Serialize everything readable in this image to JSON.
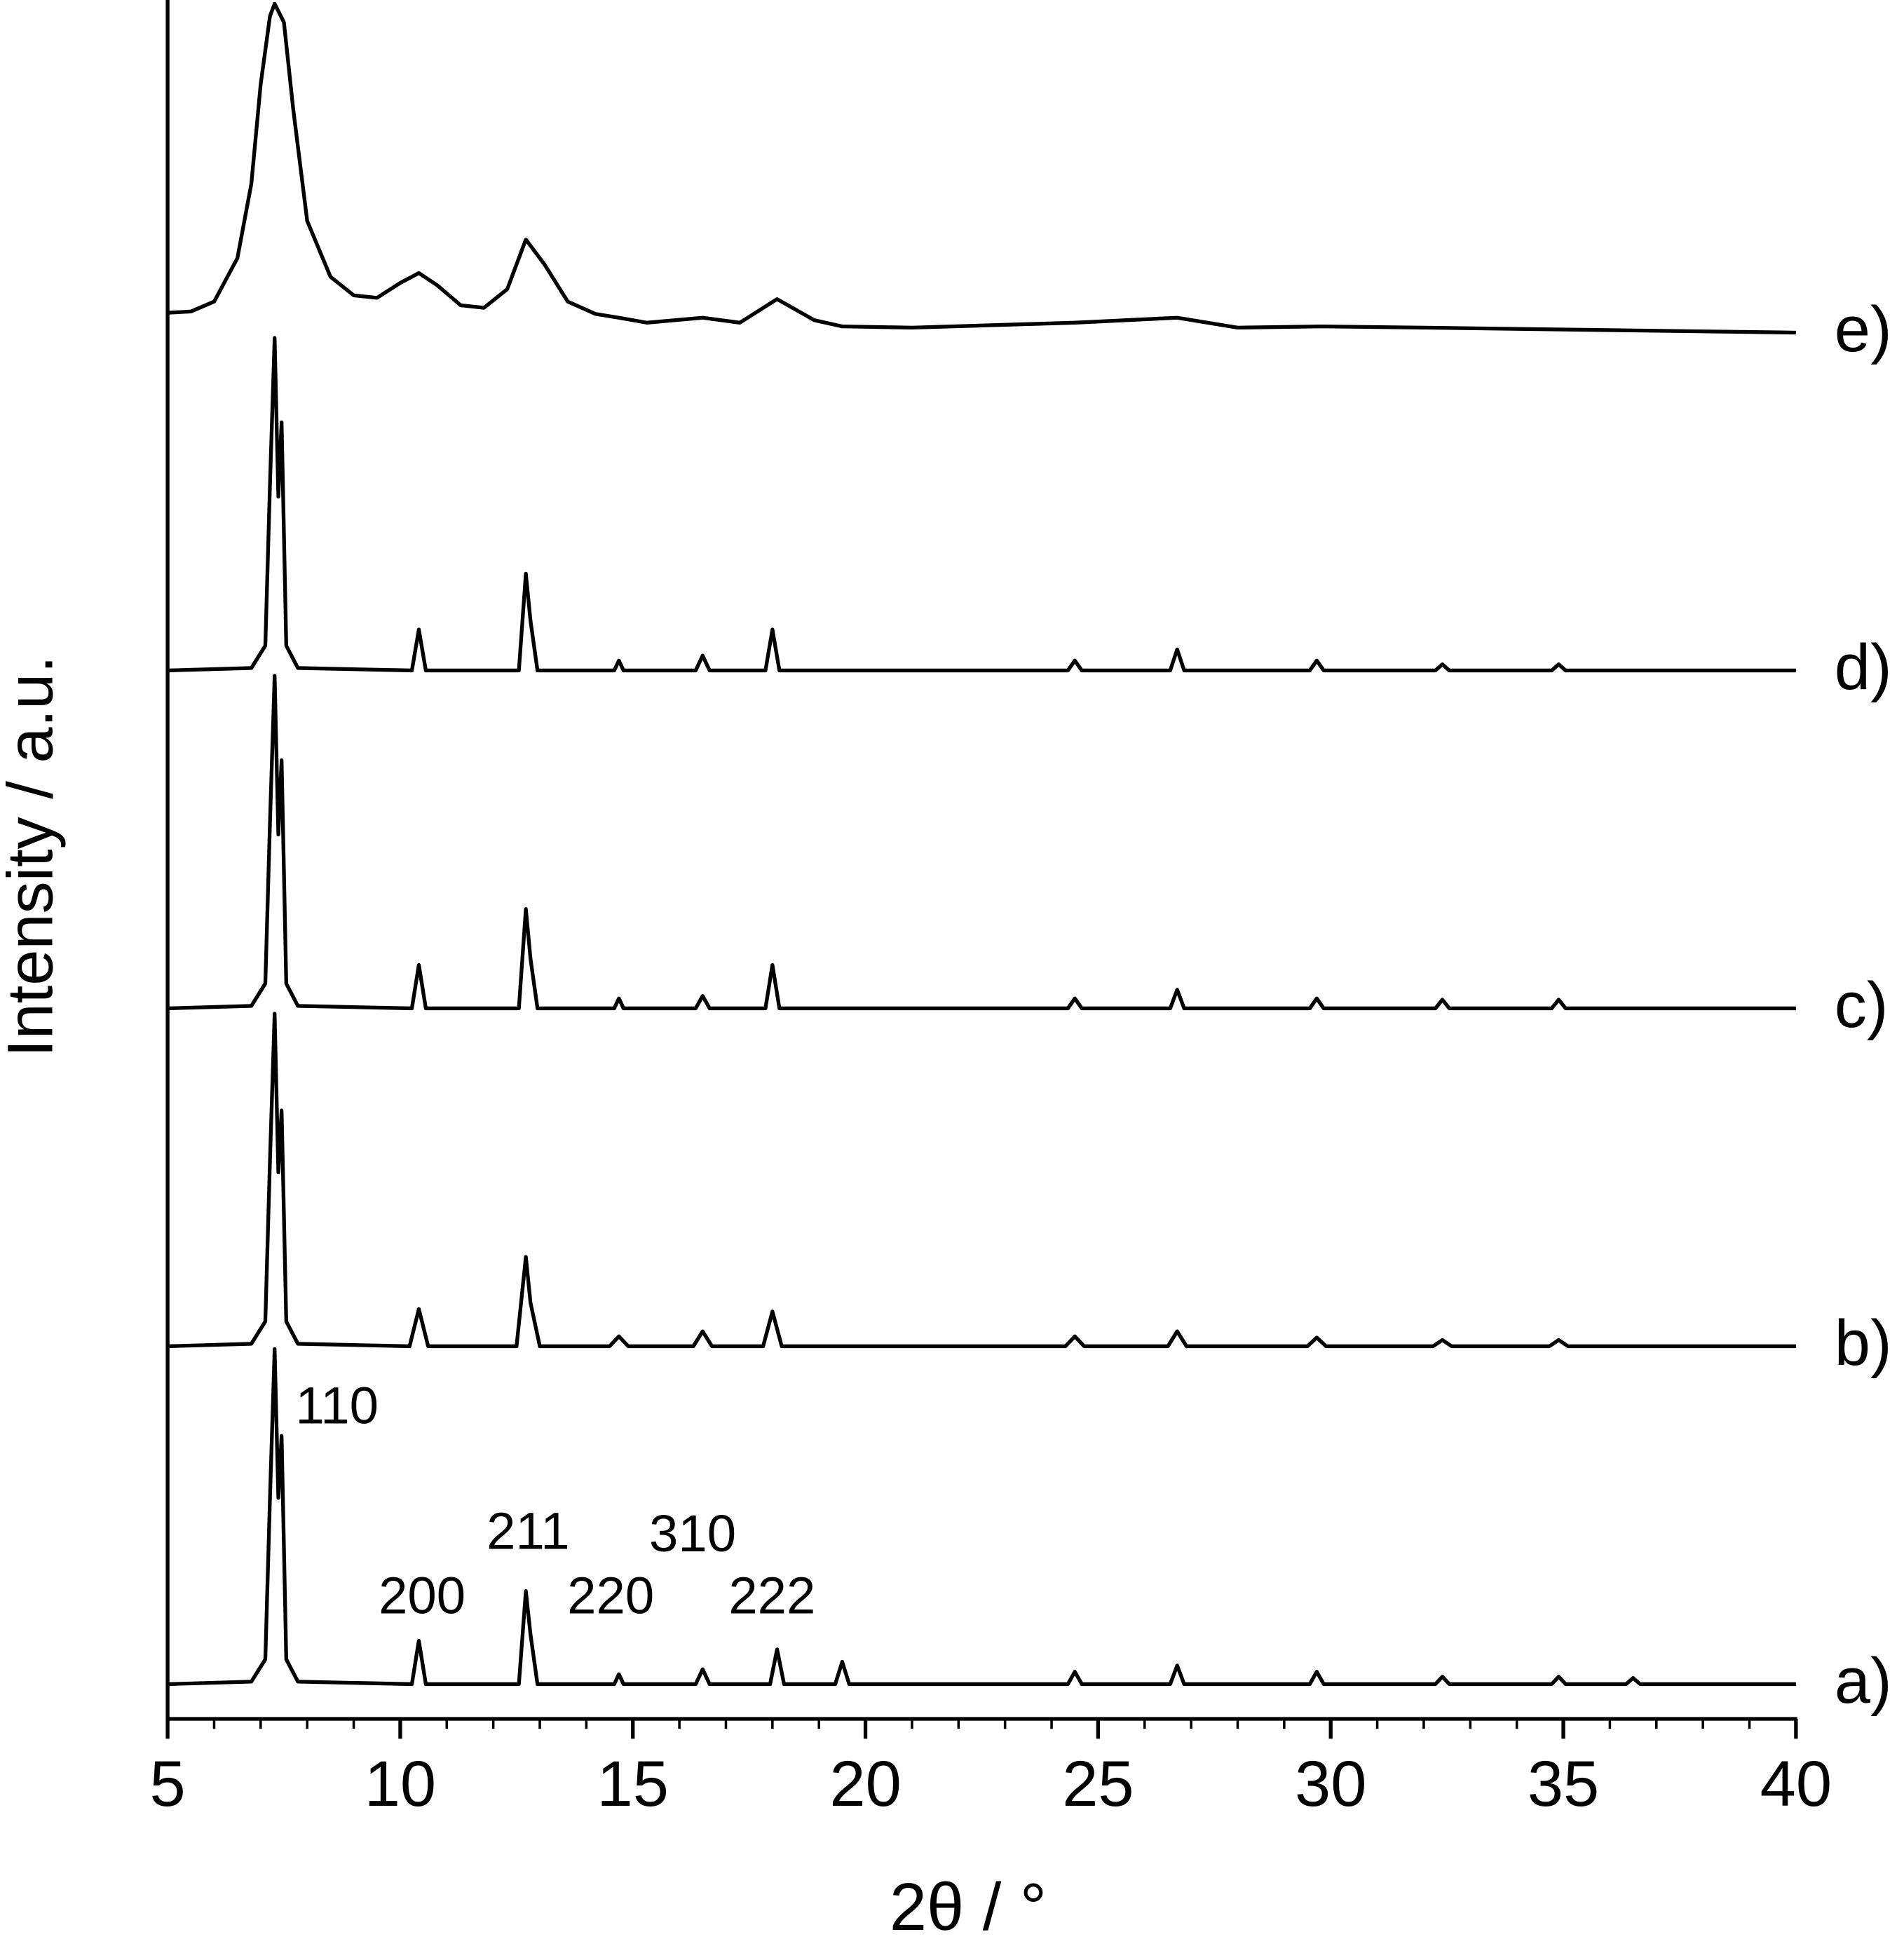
{
  "chart_data": {
    "type": "line",
    "xlabel": "2θ / °",
    "ylabel": "Intensity / a.u.",
    "xlim": [
      5,
      40
    ],
    "xticks": [
      5,
      10,
      15,
      20,
      25,
      30,
      35,
      40
    ],
    "x_minor_step": 1,
    "annotations": [
      "110",
      "200",
      "211",
      "220",
      "310",
      "222"
    ],
    "series": [
      {
        "name": "a)",
        "color": "#000000",
        "x": [
          5,
          6.8,
          7.1,
          7.2,
          7.3,
          7.38,
          7.45,
          7.55,
          7.8,
          10.25,
          10.4,
          10.55,
          12.55,
          12.7,
          12.8,
          12.95,
          14.6,
          14.7,
          14.8,
          16.35,
          16.5,
          16.65,
          17.95,
          18.1,
          18.25,
          19.35,
          19.5,
          19.65,
          24.35,
          24.5,
          24.65,
          26.55,
          26.7,
          26.85,
          29.55,
          29.7,
          29.85,
          32.25,
          32.4,
          32.55,
          34.75,
          34.9,
          35.05,
          36.35,
          36.5,
          36.65,
          40
        ],
        "values": [
          0,
          2,
          20,
          150,
          270,
          150,
          200,
          20,
          2,
          0,
          35,
          0,
          0,
          75,
          40,
          0,
          0,
          8,
          0,
          0,
          12,
          0,
          0,
          28,
          0,
          0,
          18,
          0,
          0,
          10,
          0,
          0,
          15,
          0,
          0,
          10,
          0,
          0,
          6,
          0,
          0,
          6,
          0,
          0,
          5,
          0,
          0
        ]
      },
      {
        "name": "b)",
        "color": "#000000",
        "x": [
          5,
          6.8,
          7.1,
          7.2,
          7.3,
          7.38,
          7.45,
          7.55,
          7.8,
          10.2,
          10.4,
          10.6,
          12.5,
          12.7,
          12.8,
          13.0,
          14.5,
          14.7,
          14.9,
          16.3,
          16.5,
          16.7,
          17.8,
          18.0,
          18.2,
          24.3,
          24.5,
          24.7,
          26.5,
          26.7,
          26.9,
          29.5,
          29.7,
          29.9,
          32.2,
          32.4,
          32.6,
          34.7,
          34.9,
          35.1,
          40
        ],
        "values": [
          0,
          2,
          20,
          150,
          268,
          140,
          190,
          20,
          2,
          0,
          30,
          0,
          0,
          72,
          35,
          0,
          0,
          8,
          0,
          0,
          12,
          0,
          0,
          28,
          0,
          0,
          8,
          0,
          0,
          12,
          0,
          0,
          7,
          0,
          0,
          5,
          0,
          0,
          5,
          0,
          0
        ]
      },
      {
        "name": "c)",
        "color": "#000000",
        "x": [
          5,
          6.8,
          7.1,
          7.2,
          7.3,
          7.38,
          7.45,
          7.55,
          7.8,
          10.25,
          10.4,
          10.55,
          12.55,
          12.7,
          12.8,
          12.95,
          14.6,
          14.7,
          14.8,
          16.35,
          16.5,
          16.65,
          17.85,
          18.0,
          18.15,
          24.35,
          24.5,
          24.65,
          26.55,
          26.7,
          26.85,
          29.55,
          29.7,
          29.85,
          32.25,
          32.4,
          32.55,
          34.75,
          34.9,
          35.05,
          40
        ],
        "values": [
          0,
          2,
          20,
          150,
          268,
          140,
          200,
          20,
          2,
          0,
          35,
          0,
          0,
          80,
          40,
          0,
          0,
          8,
          0,
          0,
          10,
          0,
          0,
          35,
          0,
          0,
          8,
          0,
          0,
          15,
          0,
          0,
          8,
          0,
          0,
          7,
          0,
          0,
          7,
          0,
          0
        ]
      },
      {
        "name": "d)",
        "color": "#000000",
        "x": [
          5,
          6.8,
          7.1,
          7.2,
          7.3,
          7.38,
          7.45,
          7.55,
          7.8,
          10.25,
          10.4,
          10.55,
          12.55,
          12.7,
          12.8,
          12.95,
          14.6,
          14.7,
          14.8,
          16.35,
          16.5,
          16.65,
          17.85,
          18.0,
          18.15,
          24.35,
          24.5,
          24.65,
          26.55,
          26.7,
          26.85,
          29.55,
          29.7,
          29.85,
          32.25,
          32.4,
          32.55,
          34.75,
          34.9,
          35.05,
          40
        ],
        "values": [
          0,
          2,
          20,
          150,
          268,
          140,
          200,
          20,
          2,
          0,
          33,
          0,
          0,
          78,
          40,
          0,
          0,
          8,
          0,
          0,
          12,
          0,
          0,
          33,
          0,
          0,
          8,
          0,
          0,
          17,
          0,
          0,
          8,
          0,
          0,
          5,
          0,
          0,
          5,
          0,
          0
        ]
      },
      {
        "name": "e)",
        "color": "#000000",
        "x": [
          5,
          5.5,
          6,
          6.5,
          6.8,
          7.0,
          7.2,
          7.3,
          7.5,
          7.7,
          8,
          8.5,
          9,
          9.5,
          10,
          10.4,
          10.8,
          11.3,
          11.8,
          12.3,
          12.7,
          13.1,
          13.6,
          14.2,
          14.7,
          15.3,
          16.5,
          17.3,
          18.1,
          18.9,
          19.5,
          21,
          24.5,
          26.7,
          28,
          29.8,
          32,
          40
        ],
        "values": [
          16,
          17,
          25,
          60,
          120,
          200,
          255,
          265,
          250,
          180,
          90,
          45,
          30,
          28,
          40,
          48,
          38,
          22,
          20,
          35,
          75,
          55,
          25,
          15,
          12,
          8,
          12,
          8,
          27,
          10,
          5,
          4,
          8,
          12,
          4,
          5,
          4,
          0
        ]
      }
    ]
  }
}
